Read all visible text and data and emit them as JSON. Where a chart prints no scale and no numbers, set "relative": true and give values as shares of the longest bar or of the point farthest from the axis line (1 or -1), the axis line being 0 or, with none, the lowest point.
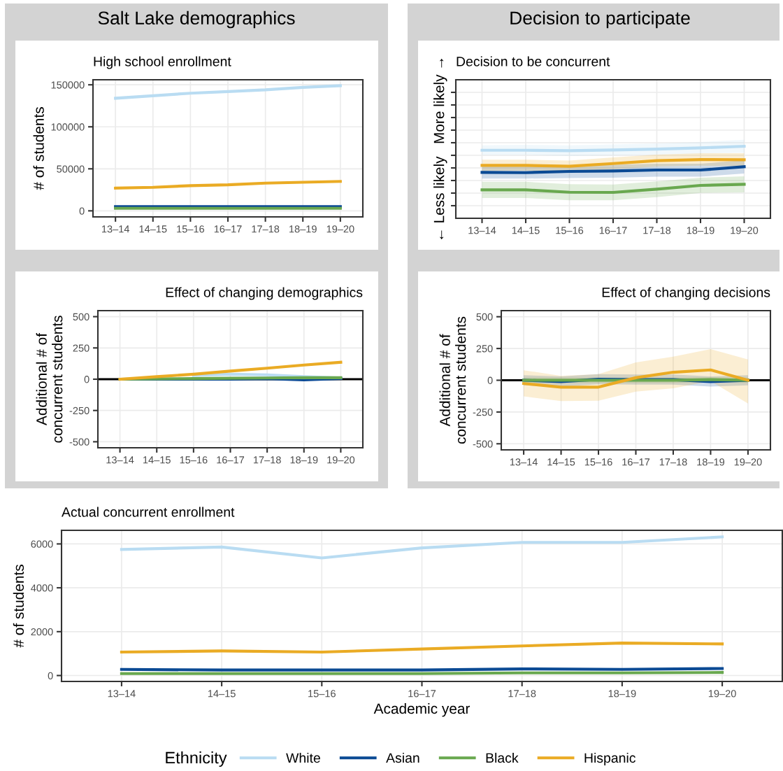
{
  "chart_data": [
    {
      "type": "line",
      "title": "Salt Lake demographics",
      "subtitle": "High school enrollment",
      "ylabel": "# of students",
      "categories": [
        "13–14",
        "14–15",
        "15–16",
        "16–17",
        "17–18",
        "18–19",
        "19–20"
      ],
      "ylim": [
        -7200,
        156000
      ],
      "yticks": [
        0,
        50000,
        100000,
        150000
      ],
      "grid": true,
      "series": [
        {
          "color": "#b9dcf2",
          "values": [
            134000,
            137000,
            140000,
            142000,
            144000,
            147000,
            149000
          ]
        },
        {
          "color": "#0b4a94",
          "values": [
            5000,
            5000,
            5000,
            5000,
            5000,
            5000,
            5000
          ]
        },
        {
          "color": "#69a84f",
          "values": [
            3000,
            3000,
            3000,
            3000,
            3000,
            3000,
            3000
          ]
        },
        {
          "color": "#eaab24",
          "values": [
            27000,
            28000,
            30000,
            31000,
            33000,
            34000,
            35000
          ]
        }
      ]
    },
    {
      "type": "line",
      "title": "Decision to participate",
      "subtitle": "Decision to be concurrent",
      "ylabel": "← Less likely   More likely →",
      "categories": [
        "13–14",
        "14–15",
        "15–16",
        "16–17",
        "17–18",
        "18–19",
        "19–20"
      ],
      "relative": true,
      "tick_labels": "x",
      "grid": true,
      "series": [
        {
          "color": "#b9dcf2",
          "values": [
            0.914,
            0.914,
            0.904,
            0.919,
            0.939,
            0.965,
            1.0
          ],
          "lower": [
            0.81,
            0.81,
            0.79,
            0.8,
            0.82,
            0.84,
            0.86
          ],
          "upper": [
            1.02,
            1.03,
            1.02,
            1.04,
            1.06,
            1.09,
            1.14
          ]
        },
        {
          "color": "#0b4a94",
          "values": [
            0.434,
            0.429,
            0.455,
            0.465,
            0.485,
            0.485,
            0.556
          ],
          "lower": [
            0.3,
            0.3,
            0.31,
            0.32,
            0.34,
            0.34,
            0.41
          ],
          "upper": [
            0.57,
            0.56,
            0.59,
            0.6,
            0.62,
            0.62,
            0.7
          ]
        },
        {
          "color": "#69a84f",
          "values": [
            0.056,
            0.056,
            0.005,
            0.0,
            0.071,
            0.152,
            0.177
          ],
          "lower": [
            -0.12,
            -0.12,
            -0.17,
            -0.17,
            -0.1,
            -0.01,
            0.0
          ],
          "upper": [
            0.23,
            0.23,
            0.18,
            0.17,
            0.24,
            0.32,
            0.35
          ]
        },
        {
          "color": "#eaab24",
          "values": [
            0.586,
            0.586,
            0.566,
            0.626,
            0.687,
            0.712,
            0.707
          ],
          "lower": [
            0.47,
            0.47,
            0.44,
            0.5,
            0.56,
            0.58,
            0.57
          ],
          "upper": [
            0.71,
            0.71,
            0.69,
            0.76,
            0.82,
            0.85,
            0.85
          ]
        }
      ]
    },
    {
      "type": "line",
      "title": "Effect of changing demographics",
      "ylabel": "Additional # of\nconcurrent students",
      "categories": [
        "13–14",
        "14–15",
        "15–16",
        "16–17",
        "17–18",
        "18–19",
        "19–20"
      ],
      "ylim": [
        -548,
        548
      ],
      "yticks": [
        -500,
        -250,
        0,
        250,
        500
      ],
      "grid": true,
      "ref_lines": [
        {
          "axis": "y",
          "value": 0,
          "color": "#000000"
        }
      ],
      "series": [
        {
          "color": "#b9dcf2",
          "values": [
            null,
            null,
            30,
            40,
            35,
            20,
            10
          ]
        },
        {
          "color": "#0b4a94",
          "values": [
            0,
            0,
            0,
            0,
            5,
            -5,
            5
          ]
        },
        {
          "color": "#69a84f",
          "values": [
            0,
            3,
            5,
            8,
            10,
            12,
            12
          ]
        },
        {
          "color": "#eaab24",
          "values": [
            0,
            20,
            40,
            65,
            88,
            113,
            135
          ]
        }
      ]
    },
    {
      "type": "line",
      "title": "Effect of changing decisions",
      "ylabel": "Additional # of\nconcurrent students",
      "categories": [
        "13–14",
        "14–15",
        "15–16",
        "16–17",
        "17–18",
        "18–19",
        "19–20"
      ],
      "ylim": [
        -548,
        548
      ],
      "yticks": [
        -500,
        -250,
        0,
        250,
        500
      ],
      "grid": true,
      "ref_lines": [
        {
          "axis": "y",
          "value": 0,
          "color": "#000000"
        }
      ],
      "series": [
        {
          "color": "#0b4a94",
          "values": [
            0,
            -10,
            8,
            5,
            5,
            -10,
            0
          ],
          "lower": [
            -40,
            -50,
            -32,
            -35,
            -35,
            -50,
            -40
          ],
          "upper": [
            40,
            30,
            48,
            45,
            45,
            30,
            40
          ]
        },
        {
          "color": "#69a84f",
          "values": [
            0,
            0,
            0,
            0,
            0,
            5,
            0
          ],
          "lower": [
            -20,
            -20,
            -20,
            -20,
            -20,
            -15,
            -20
          ],
          "upper": [
            20,
            20,
            20,
            20,
            20,
            25,
            20
          ]
        },
        {
          "color": "#eaab24",
          "values": [
            -26,
            -54,
            -54,
            20,
            63,
            81,
            0
          ],
          "lower": [
            -127,
            -164,
            -161,
            -90,
            -63,
            -7,
            -183
          ],
          "upper": [
            79,
            35,
            48,
            140,
            186,
            245,
            164
          ]
        }
      ]
    },
    {
      "type": "line",
      "title": "Actual concurrent enrollment",
      "xlabel": "Academic year",
      "ylabel": "# of students",
      "categories": [
        "13–14",
        "14–15",
        "15–16",
        "16–17",
        "17–18",
        "18–19",
        "19–20"
      ],
      "ylim": [
        -270,
        6620
      ],
      "yticks": [
        0,
        2000,
        4000,
        6000
      ],
      "grid": true,
      "legend": "bottom",
      "legend_title": "Ethnicity",
      "series": [
        {
          "name": "White",
          "color": "#b9dcf2",
          "values": [
            5750,
            5860,
            5360,
            5820,
            6070,
            6070,
            6320
          ]
        },
        {
          "name": "Asian",
          "color": "#0b4a94",
          "values": [
            280,
            250,
            250,
            250,
            300,
            280,
            320
          ]
        },
        {
          "name": "Black",
          "color": "#69a84f",
          "values": [
            90,
            90,
            90,
            90,
            120,
            120,
            140
          ]
        },
        {
          "name": "Hispanic",
          "color": "#eaab24",
          "values": [
            1070,
            1120,
            1070,
            1210,
            1350,
            1480,
            1440
          ]
        }
      ]
    }
  ]
}
